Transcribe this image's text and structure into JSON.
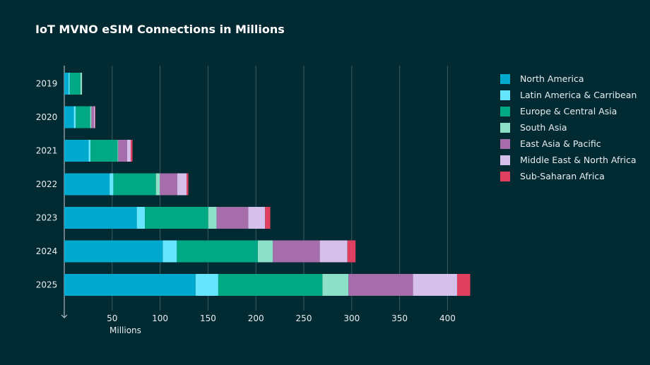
{
  "chart_data": {
    "type": "bar",
    "orientation": "horizontal",
    "stacked": true,
    "title": "IoT MVNO eSIM Connections in Millions",
    "xlabel": "Millions",
    "ylabel": "",
    "xlim": [
      0,
      425
    ],
    "xticks": [
      50,
      100,
      150,
      200,
      250,
      300,
      350,
      400
    ],
    "grid": true,
    "legend_position": "right",
    "categories": [
      "2019",
      "2020",
      "2021",
      "2022",
      "2023",
      "2024",
      "2025"
    ],
    "series": [
      {
        "name": "North America",
        "color": "#00a9ce",
        "values": [
          4.4,
          10,
          25.4,
          47.3,
          75.7,
          102.8,
          137
        ]
      },
      {
        "name": "Latin America & Carribean",
        "color": "#66e5ff",
        "values": [
          1.2,
          2,
          1.9,
          3.9,
          8.5,
          14.7,
          23.7
        ]
      },
      {
        "name": "Europe & Central Asia",
        "color": "#00a884",
        "values": [
          11.2,
          15,
          28.3,
          44.4,
          66.1,
          84.5,
          108.8
        ]
      },
      {
        "name": "South Asia",
        "color": "#8ddfc8",
        "values": [
          1.7,
          1.3,
          0.7,
          4.2,
          8.7,
          15.8,
          27.1
        ]
      },
      {
        "name": "East Asia & Pacific",
        "color": "#a56eab",
        "values": [
          0,
          2.7,
          9.3,
          18,
          33,
          48.9,
          67.4
        ]
      },
      {
        "name": "Middle East & North Africa",
        "color": "#d5bfeb",
        "values": [
          0,
          1,
          3.7,
          9.8,
          17.6,
          28.8,
          46
        ]
      },
      {
        "name": "Sub-Saharan Africa",
        "color": "#e0405f",
        "values": [
          0,
          0.4,
          1.9,
          1.9,
          5.4,
          8.5,
          13.7
        ]
      }
    ]
  }
}
